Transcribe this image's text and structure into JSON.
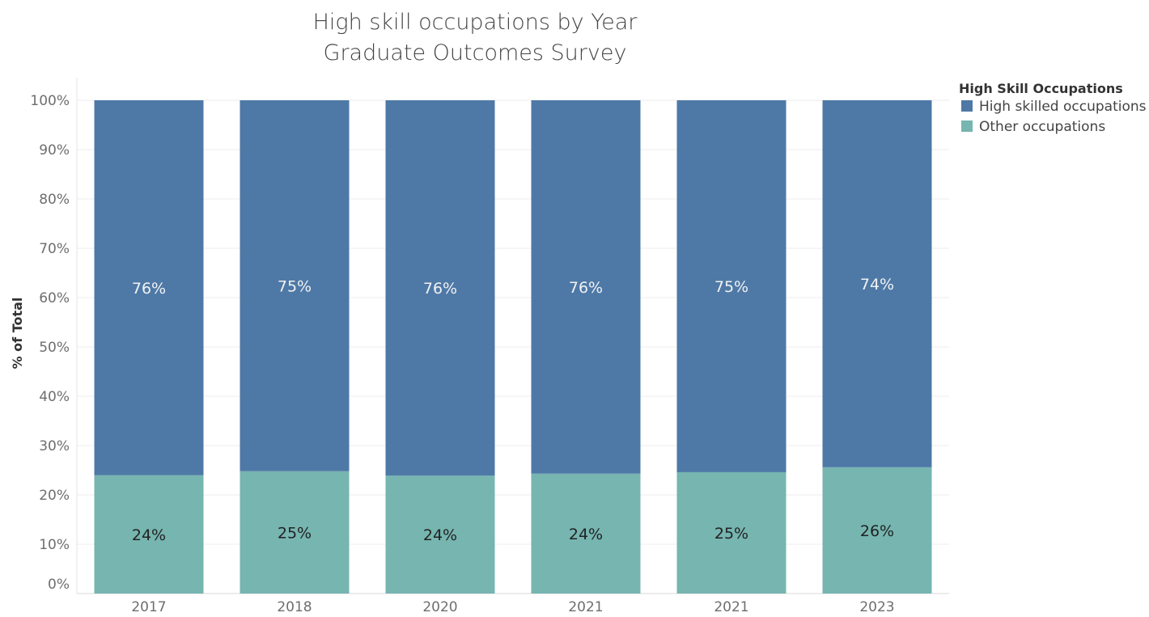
{
  "chart_data": {
    "type": "bar",
    "stacked": true,
    "title": [
      "High skill occupations by Year",
      "Graduate Outcomes Survey"
    ],
    "ylabel": "% of Total",
    "xlabel": "",
    "ylim": [
      0,
      100
    ],
    "yticks": [
      "0%",
      "10%",
      "20%",
      "30%",
      "40%",
      "50%",
      "60%",
      "70%",
      "80%",
      "90%",
      "100%"
    ],
    "categories": [
      "2017",
      "2018",
      "2020",
      "2021",
      "2021",
      "2023"
    ],
    "series": [
      {
        "name": "Other occupations",
        "color": "#76b5b0",
        "label_color": "#222222",
        "values": [
          24,
          24.8,
          23.9,
          24.3,
          24.6,
          25.6
        ],
        "labels": [
          "24%",
          "25%",
          "24%",
          "24%",
          "25%",
          "26%"
        ]
      },
      {
        "name": "High skilled occupations",
        "color": "#4e79a7",
        "label_color": "#f2f2f2",
        "values": [
          76,
          75.2,
          76.1,
          75.7,
          75.4,
          74.4
        ],
        "labels": [
          "76%",
          "75%",
          "76%",
          "76%",
          "75%",
          "74%"
        ]
      }
    ],
    "grid": true,
    "legend": {
      "title": "High Skill Occupations",
      "position": "top-right",
      "order": [
        "High skilled occupations",
        "Other occupations"
      ]
    }
  }
}
